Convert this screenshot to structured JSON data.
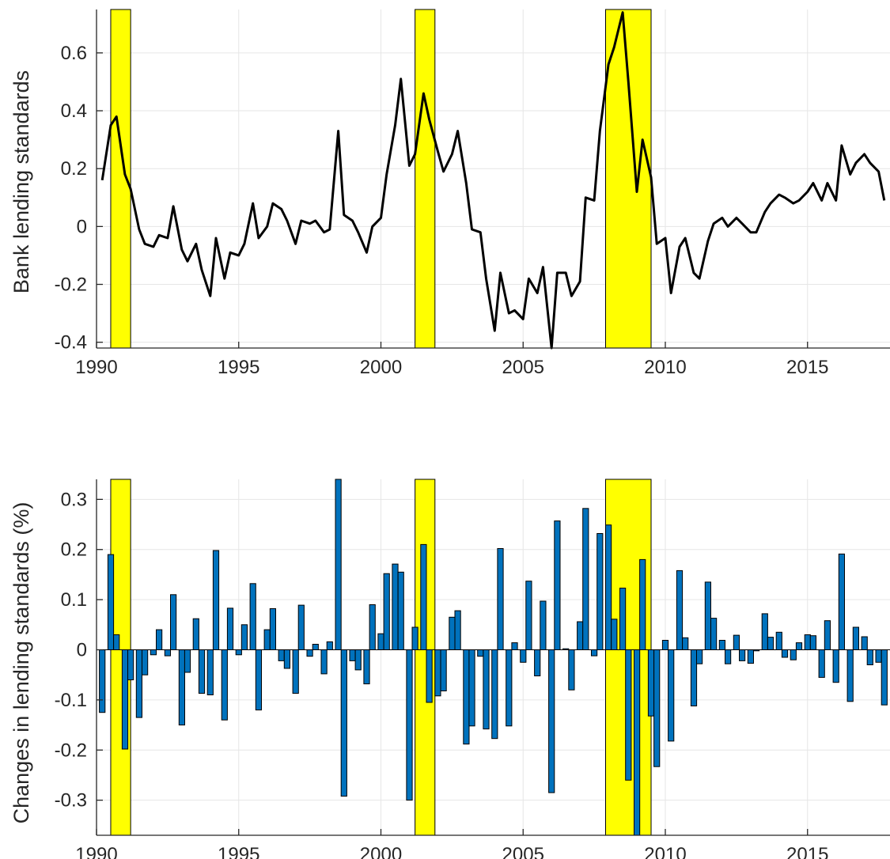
{
  "chart_data": [
    {
      "type": "line",
      "ylabel": "Bank lending standards",
      "xlabel": "",
      "title": "",
      "xlim": [
        1990.0,
        2017.9
      ],
      "ylim": [
        -0.42,
        0.75
      ],
      "x_ticks": [
        1990,
        1995,
        2000,
        2005,
        2010,
        2015
      ],
      "y_ticks": [
        -0.4,
        -0.2,
        0,
        0.2,
        0.4,
        0.6
      ],
      "y_tick_labels": [
        "-0.4",
        "-0.2",
        "0",
        "0.2",
        "0.4",
        "0.6"
      ],
      "grid": true,
      "recession_shading": [
        [
          1990.5,
          1991.2
        ],
        [
          2001.2,
          2001.9
        ],
        [
          2007.9,
          2009.5
        ]
      ],
      "recession_color": "#ffff00",
      "line_color": "#000000",
      "x": [
        1990.2,
        1990.5,
        1990.7,
        1991.0,
        1991.2,
        1991.5,
        1991.7,
        1992.0,
        1992.2,
        1992.5,
        1992.7,
        1993.0,
        1993.2,
        1993.5,
        1993.7,
        1994.0,
        1994.2,
        1994.5,
        1994.7,
        1995.0,
        1995.2,
        1995.5,
        1995.7,
        1996.0,
        1996.2,
        1996.5,
        1996.7,
        1997.0,
        1997.2,
        1997.5,
        1997.7,
        1998.0,
        1998.2,
        1998.5,
        1998.7,
        1999.0,
        1999.2,
        1999.5,
        1999.7,
        2000.0,
        2000.2,
        2000.5,
        2000.7,
        2001.0,
        2001.2,
        2001.5,
        2001.7,
        2002.0,
        2002.2,
        2002.5,
        2002.7,
        2003.0,
        2003.2,
        2003.5,
        2003.7,
        2004.0,
        2004.2,
        2004.5,
        2004.7,
        2005.0,
        2005.2,
        2005.5,
        2005.7,
        2006.0,
        2006.2,
        2006.5,
        2006.7,
        2007.0,
        2007.2,
        2007.5,
        2007.7,
        2008.0,
        2008.2,
        2008.5,
        2008.7,
        2009.0,
        2009.2,
        2009.5,
        2009.7,
        2010.0,
        2010.2,
        2010.5,
        2010.7,
        2011.0,
        2011.2,
        2011.5,
        2011.7,
        2012.0,
        2012.2,
        2012.5,
        2012.7,
        2013.0,
        2013.2,
        2013.5,
        2013.7,
        2014.0,
        2014.2,
        2014.5,
        2014.7,
        2015.0,
        2015.2,
        2015.5,
        2015.7,
        2016.0,
        2016.2,
        2016.5,
        2016.7,
        2017.0,
        2017.2,
        2017.5,
        2017.7
      ],
      "y": [
        0.16,
        0.35,
        0.38,
        0.18,
        0.13,
        -0.01,
        -0.06,
        -0.07,
        -0.03,
        -0.04,
        0.07,
        -0.08,
        -0.12,
        -0.06,
        -0.15,
        -0.24,
        -0.04,
        -0.18,
        -0.09,
        -0.1,
        -0.06,
        0.08,
        -0.04,
        0.0,
        0.08,
        0.06,
        0.02,
        -0.06,
        0.02,
        0.01,
        0.02,
        -0.02,
        -0.01,
        0.33,
        0.04,
        0.02,
        -0.02,
        -0.09,
        0.0,
        0.03,
        0.18,
        0.35,
        0.51,
        0.21,
        0.25,
        0.46,
        0.37,
        0.26,
        0.19,
        0.25,
        0.33,
        0.15,
        -0.01,
        -0.02,
        -0.18,
        -0.36,
        -0.16,
        -0.3,
        -0.29,
        -0.32,
        -0.18,
        -0.23,
        -0.14,
        -0.42,
        -0.16,
        -0.16,
        -0.24,
        -0.19,
        0.1,
        0.09,
        0.33,
        0.56,
        0.62,
        0.74,
        0.5,
        0.12,
        0.3,
        0.17,
        -0.06,
        -0.04,
        -0.23,
        -0.07,
        -0.04,
        -0.16,
        -0.18,
        -0.05,
        0.01,
        0.03,
        0.0,
        0.03,
        0.01,
        -0.02,
        -0.02,
        0.05,
        0.08,
        0.11,
        0.1,
        0.08,
        0.09,
        0.12,
        0.15,
        0.09,
        0.15,
        0.09,
        0.28,
        0.18,
        0.22,
        0.25,
        0.22,
        0.19,
        0.09
      ]
    },
    {
      "type": "bar",
      "ylabel": "Changes in lending standards (%)",
      "xlabel": "",
      "title": "",
      "xlim": [
        1990.0,
        2017.9
      ],
      "ylim": [
        -0.37,
        0.34
      ],
      "x_ticks": [
        1990,
        1995,
        2000,
        2005,
        2010,
        2015
      ],
      "y_ticks": [
        -0.3,
        -0.2,
        -0.1,
        0,
        0.1,
        0.2,
        0.3
      ],
      "y_tick_labels": [
        "-0.3",
        "-0.2",
        "-0.1",
        "0",
        "0.1",
        "0.2",
        "0.3"
      ],
      "grid": true,
      "recession_shading": [
        [
          1990.5,
          1991.2
        ],
        [
          2001.2,
          2001.9
        ],
        [
          2007.9,
          2009.5
        ]
      ],
      "recession_color": "#ffff00",
      "bar_color": "#0072bd",
      "x": [
        1990.2,
        1990.5,
        1990.7,
        1991.0,
        1991.2,
        1991.5,
        1991.7,
        1992.0,
        1992.2,
        1992.5,
        1992.7,
        1993.0,
        1993.2,
        1993.5,
        1993.7,
        1994.0,
        1994.2,
        1994.5,
        1994.7,
        1995.0,
        1995.2,
        1995.5,
        1995.7,
        1996.0,
        1996.2,
        1996.5,
        1996.7,
        1997.0,
        1997.2,
        1997.5,
        1997.7,
        1998.0,
        1998.2,
        1998.5,
        1998.7,
        1999.0,
        1999.2,
        1999.5,
        1999.7,
        2000.0,
        2000.2,
        2000.5,
        2000.7,
        2001.0,
        2001.2,
        2001.5,
        2001.7,
        2002.0,
        2002.2,
        2002.5,
        2002.7,
        2003.0,
        2003.2,
        2003.5,
        2003.7,
        2004.0,
        2004.2,
        2004.5,
        2004.7,
        2005.0,
        2005.2,
        2005.5,
        2005.7,
        2006.0,
        2006.2,
        2006.5,
        2006.7,
        2007.0,
        2007.2,
        2007.5,
        2007.7,
        2008.0,
        2008.2,
        2008.5,
        2008.7,
        2009.0,
        2009.2,
        2009.5,
        2009.7,
        2010.0,
        2010.2,
        2010.5,
        2010.7,
        2011.0,
        2011.2,
        2011.5,
        2011.7,
        2012.0,
        2012.2,
        2012.5,
        2012.7,
        2013.0,
        2013.2,
        2013.5,
        2013.7,
        2014.0,
        2014.2,
        2014.5,
        2014.7,
        2015.0,
        2015.2,
        2015.5,
        2015.7,
        2016.0,
        2016.2,
        2016.5,
        2016.7,
        2017.0,
        2017.2,
        2017.5,
        2017.7
      ],
      "values": [
        -0.125,
        0.19,
        0.03,
        -0.198,
        -0.06,
        -0.135,
        -0.05,
        -0.01,
        0.04,
        -0.012,
        0.11,
        -0.15,
        -0.045,
        0.062,
        -0.087,
        -0.09,
        0.198,
        -0.14,
        0.083,
        -0.01,
        0.05,
        0.132,
        -0.12,
        0.04,
        0.082,
        -0.022,
        -0.037,
        -0.087,
        0.089,
        -0.013,
        0.011,
        -0.048,
        0.016,
        0.34,
        -0.292,
        -0.022,
        -0.04,
        -0.068,
        0.09,
        0.032,
        0.152,
        0.171,
        0.155,
        -0.3,
        0.045,
        0.21,
        -0.105,
        -0.092,
        -0.082,
        0.065,
        0.078,
        -0.188,
        -0.152,
        -0.013,
        -0.158,
        -0.177,
        0.202,
        -0.152,
        0.014,
        -0.025,
        0.137,
        -0.052,
        0.097,
        -0.285,
        0.257,
        0.002,
        -0.08,
        0.056,
        0.282,
        -0.012,
        0.232,
        0.249,
        0.061,
        0.123,
        -0.26,
        -0.37,
        0.18,
        -0.132,
        -0.233,
        0.019,
        -0.182,
        0.158,
        0.024,
        -0.112,
        -0.028,
        0.135,
        0.063,
        0.019,
        -0.028,
        0.029,
        -0.022,
        -0.027,
        -0.002,
        0.072,
        0.025,
        0.035,
        -0.015,
        -0.02,
        0.014,
        0.03,
        0.028,
        -0.055,
        0.058,
        -0.065,
        0.191,
        -0.103,
        0.045,
        0.026,
        -0.03,
        -0.025,
        -0.11
      ]
    }
  ]
}
